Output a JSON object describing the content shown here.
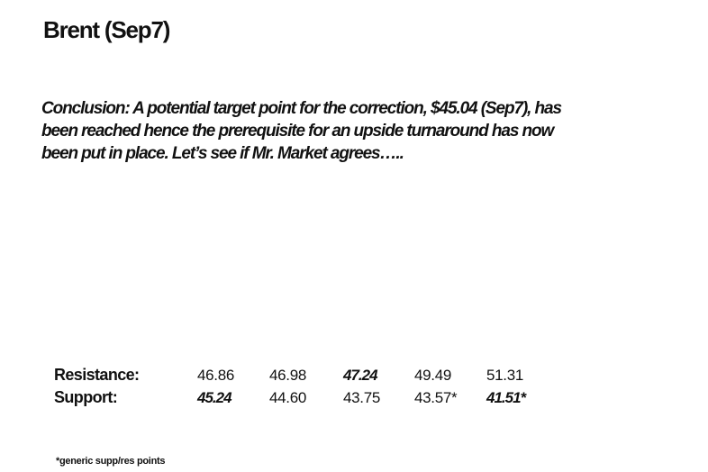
{
  "header": {
    "title": "Brent (Sep7)"
  },
  "conclusion": [
    "Conclusion: A potential target point for the correction, $45.04 (Sep7), has",
    "been reached hence the prerequisite for an upside turnaround has now",
    "been put in place. Let’s see if Mr. Market agrees….."
  ],
  "table": {
    "rows": [
      [
        "Resistance:",
        "46.86",
        "46.98",
        "47.24",
        "49.49",
        "51.31"
      ],
      [
        "Support:",
        "45.24",
        "44.60",
        "43.75",
        "43.57*",
        "41.51*"
      ]
    ]
  },
  "footnote": "*generic supp/res points"
}
